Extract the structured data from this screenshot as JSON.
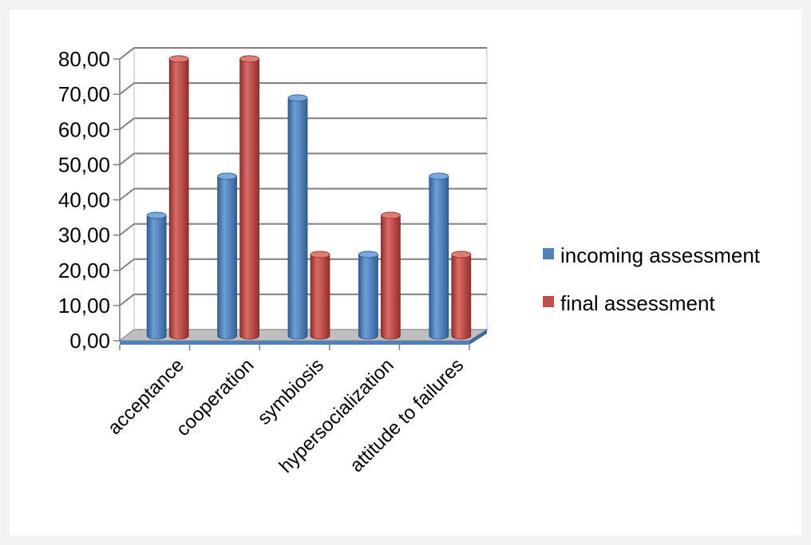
{
  "chart_data": {
    "type": "bar",
    "title": "",
    "xlabel": "",
    "ylabel": "",
    "categories": [
      "acceptance",
      "cooperation",
      "symbiosis",
      "hypersocialization",
      "attitude to failures"
    ],
    "series": [
      {
        "name": "incoming assessment",
        "values": [
          33.33,
          44.44,
          66.67,
          22.22,
          44.44
        ],
        "color": "#4f81bd"
      },
      {
        "name": "final assessment",
        "values": [
          77.78,
          77.78,
          22.22,
          33.33,
          22.22
        ],
        "color": "#c0504d"
      }
    ],
    "ylim": [
      0,
      80
    ],
    "yticks": [
      "0,00",
      "10,00",
      "20,00",
      "30,00",
      "40,00",
      "50,00",
      "60,00",
      "70,00",
      "80,00"
    ],
    "grid": true,
    "legend_position": "right",
    "style": "3d-cylinder"
  }
}
